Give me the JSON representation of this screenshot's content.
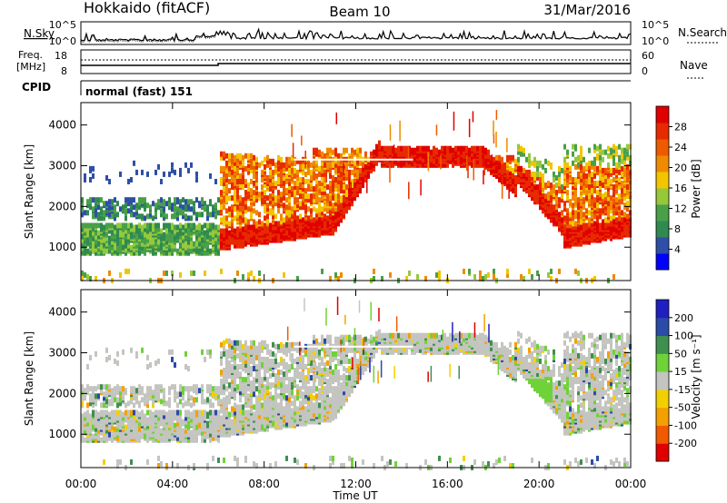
{
  "header": {
    "station": "Hokkaido (fitACF)",
    "beam": "Beam 10",
    "date": "31/Mar/2016"
  },
  "noise_panel": {
    "left_label": "N.Sky",
    "right_label": "N.Search",
    "left_ticks": [
      "10^5",
      "10^0"
    ],
    "right_ticks": [
      "10^5",
      "10^0"
    ]
  },
  "freq_panel": {
    "left_label_1": "Freq.",
    "left_label_2": "[MHz]",
    "right_label": "Nave",
    "left_ticks": [
      "18",
      "8"
    ],
    "right_ticks": [
      "60",
      "0"
    ]
  },
  "cpid": {
    "label": "CPID",
    "mode": "normal (fast) 151"
  },
  "time_axis": {
    "title": "Time UT",
    "ticks": [
      "00:00",
      "04:00",
      "08:00",
      "12:00",
      "16:00",
      "20:00",
      "00:00"
    ]
  },
  "colors": {
    "power": [
      "#0000ff",
      "#2e4fa8",
      "#2f8a4f",
      "#4aa048",
      "#95c93a",
      "#f2c500",
      "#f08a00",
      "#ee5a00",
      "#e82a00",
      "#e00000"
    ],
    "velocity": [
      "#e00000",
      "#f25a00",
      "#f4a000",
      "#f2d000",
      "#c4c4c0",
      "#6fd238",
      "#3f8f4f",
      "#2a4ba8",
      "#2020c0"
    ]
  },
  "chart_data": [
    {
      "type": "heatmap",
      "name": "Power",
      "ylabel": "Slant Range [km]",
      "xlabel": "Time UT",
      "yticks": [
        1000,
        2000,
        3000,
        4000
      ],
      "xticks": [
        "00:00",
        "04:00",
        "08:00",
        "12:00",
        "16:00",
        "20:00",
        "00:00"
      ],
      "colorbar": {
        "label": "Power [dB]",
        "ticks": [
          "28",
          "24",
          "20",
          "16",
          "12",
          "8",
          "4"
        ]
      }
    },
    {
      "type": "heatmap",
      "name": "Velocity",
      "ylabel": "Slant Range [km]",
      "xlabel": "Time UT",
      "yticks": [
        1000,
        2000,
        3000,
        4000
      ],
      "xticks": [
        "00:00",
        "04:00",
        "08:00",
        "12:00",
        "16:00",
        "20:00",
        "00:00"
      ],
      "colorbar": {
        "label": "Velocity [m s⁻¹]",
        "ticks": [
          "200",
          "100",
          "50",
          "15",
          "-15",
          "-50",
          "-100",
          "-200"
        ]
      }
    }
  ]
}
